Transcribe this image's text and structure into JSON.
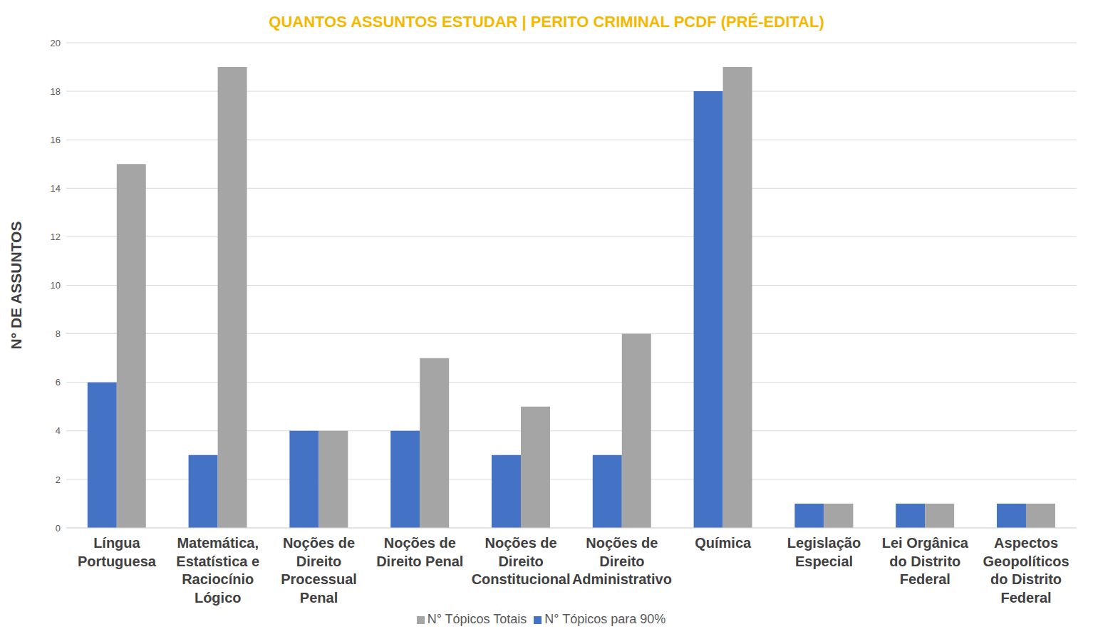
{
  "chart_data": {
    "type": "bar",
    "title": "QUANTOS ASSUNTOS ESTUDAR | PERITO CRIMINAL PCDF (PRÉ-EDITAL)",
    "y_label": "N° DE ASSUNTOS",
    "categories": [
      "Língua Portuguesa",
      "Matemática, Estatística e Raciocínio Lógico",
      "Noções de Direito Processual Penal",
      "Noções de Direito Penal",
      "Noções de Direito Constitucional",
      "Noções de Direito Administrativo",
      "Química",
      "Legislação Especial",
      "Lei Orgânica do Distrito Federal",
      "Aspectos Geopolíticos do Distrito Federal"
    ],
    "series": [
      {
        "name": "N° Tópicos para 90%",
        "color": "#4472c4",
        "values": [
          6,
          3,
          4,
          4,
          3,
          3,
          18,
          1,
          1,
          1
        ]
      },
      {
        "name": "N° Tópicos Totais",
        "color": "#a5a5a5",
        "values": [
          15,
          19,
          4,
          7,
          5,
          8,
          19,
          1,
          1,
          1
        ]
      }
    ],
    "ylim": [
      0,
      20
    ],
    "yticks": [
      0,
      2,
      4,
      6,
      8,
      10,
      12,
      14,
      16,
      18,
      20
    ],
    "grid": true,
    "legend": "bottom"
  }
}
